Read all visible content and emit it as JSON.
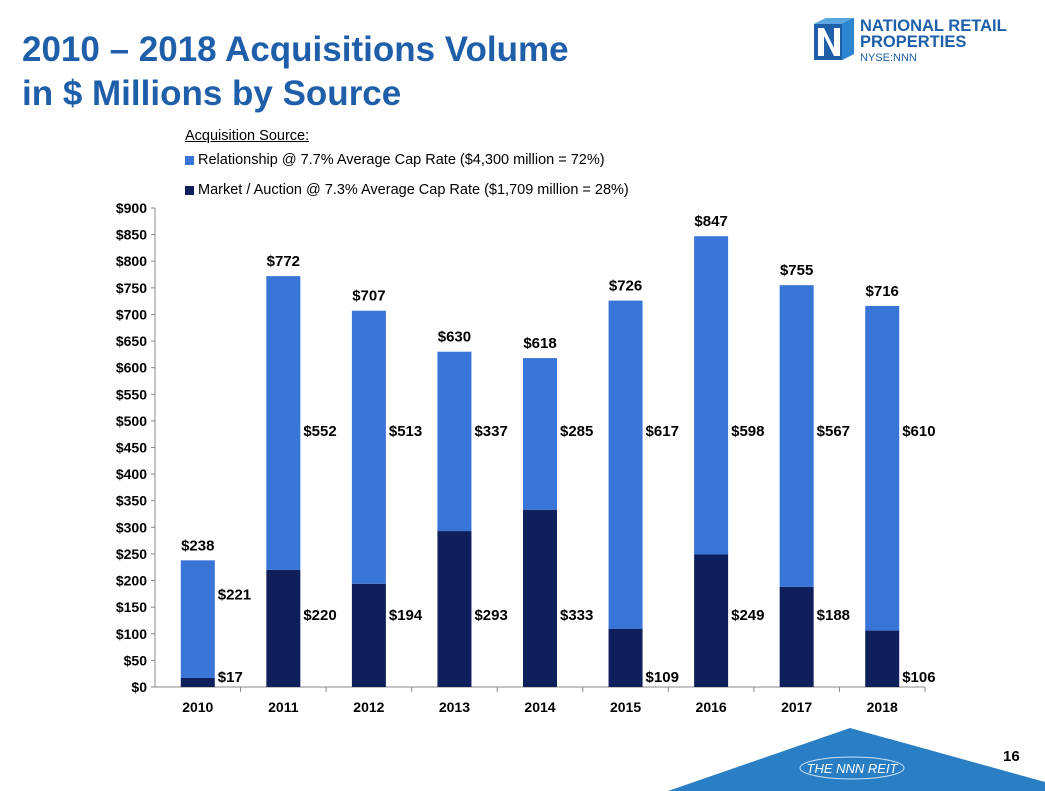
{
  "title_line1": "2010 – 2018 Acquisitions Volume",
  "title_line2": "in $ Millions by Source",
  "logo": {
    "line1": "NATIONAL RETAIL",
    "line2": "PROPERTIES",
    "ticker": "NYSE:NNN"
  },
  "footer": {
    "brand": "THE NNN REIT",
    "page_number": "16"
  },
  "colors": {
    "relationship": "#3875d7",
    "market": "#0f1f5c",
    "title": "#1f5ea8",
    "banner": "#2a7fc4"
  },
  "chart_data": {
    "type": "bar",
    "stacked": true,
    "legend_title": "Acquisition Source:",
    "categories": [
      "2010",
      "2011",
      "2012",
      "2013",
      "2014",
      "2015",
      "2016",
      "2017",
      "2018"
    ],
    "series": [
      {
        "name": "Market / Auction @ 7.3% Average Cap Rate ($1,709 million = 28%)",
        "values": [
          17,
          220,
          194,
          293,
          333,
          109,
          249,
          188,
          106
        ]
      },
      {
        "name": "Relationship @ 7.7% Average Cap Rate ($4,300 million = 72%)",
        "values": [
          221,
          552,
          513,
          337,
          285,
          617,
          598,
          567,
          610
        ]
      }
    ],
    "totals": [
      238,
      772,
      707,
      630,
      618,
      726,
      847,
      755,
      716
    ],
    "ylim": [
      0,
      900
    ],
    "ytick_step": 50,
    "ytick_prefix": "$",
    "legend_position": "top",
    "xlabel": "",
    "ylabel": ""
  }
}
